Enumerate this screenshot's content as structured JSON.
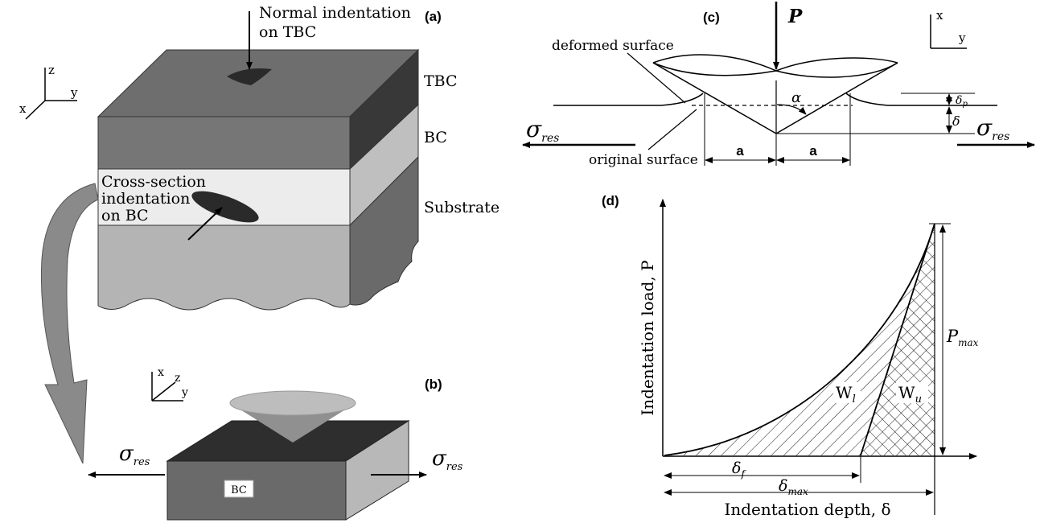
{
  "panel_a": {
    "tag": "(a)",
    "normal_indentation_line1": "Normal indentation",
    "normal_indentation_line2": "on TBC",
    "layer_tbc": "TBC",
    "layer_bc": "BC",
    "layer_substrate": "Substrate",
    "cross_section_line1": "Cross-section",
    "cross_section_line2": "indentation",
    "cross_section_line3": "on BC",
    "axis_x": "x",
    "axis_y": "y",
    "axis_z": "z"
  },
  "panel_b": {
    "tag": "(b)",
    "block_label": "BC",
    "sigma_symbol": "σ",
    "sigma_subscript": "res",
    "axis_x": "x",
    "axis_y": "y",
    "axis_z": "z"
  },
  "panel_c": {
    "tag": "(c)",
    "load_label": "P",
    "deformed_surface": "deformed surface",
    "original_surface": "original surface",
    "alpha": "α",
    "delta_p": "δ",
    "delta_p_sub": "p",
    "delta": "δ",
    "a_left": "a",
    "a_right": "a",
    "sigma_symbol": "σ",
    "sigma_subscript": "res",
    "axis_x": "x",
    "axis_y": "y"
  },
  "panel_d": {
    "tag": "(d)",
    "y_axis_label": "Indentation load, P",
    "x_axis_label": "Indentation depth, δ",
    "pmax": "P",
    "pmax_sub": "max",
    "wl": "W",
    "wl_sub": "l",
    "wu": "W",
    "wu_sub": "u",
    "delta_f": "δ",
    "delta_f_sub": "f",
    "delta_max": "δ",
    "delta_max_sub": "max"
  },
  "colors": {
    "tbc_top": "#6e6e6e",
    "tbc_front": "#767676",
    "tbc_side": "#383838",
    "bc_side": "#bfbfbf",
    "bc_front": "#ececec",
    "substrate_front": "#b4b4b4",
    "substrate_side": "#6a6a6a",
    "curved_arrow": "#8a8a8a"
  }
}
